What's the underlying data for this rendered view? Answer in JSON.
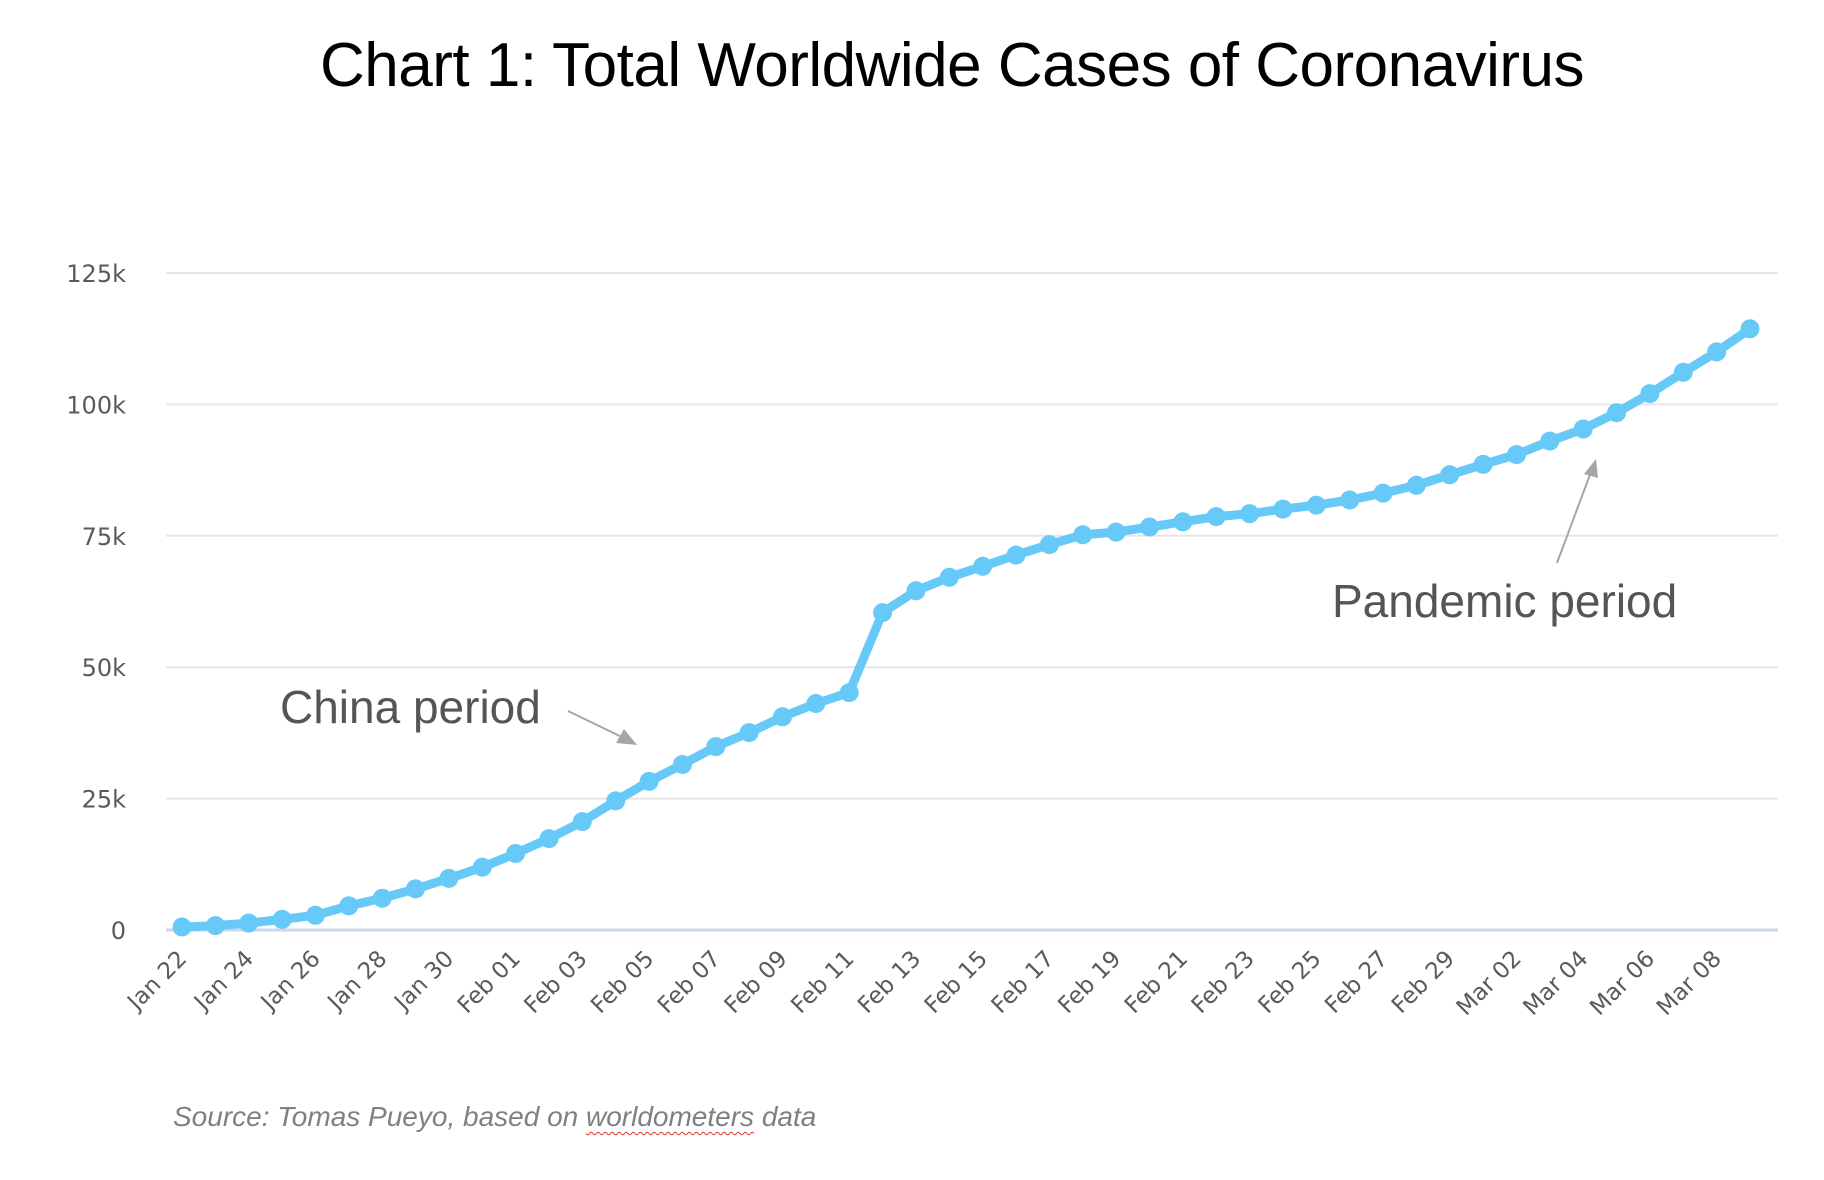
{
  "chart_data": {
    "type": "line",
    "title": "Chart 1: Total Worldwide Cases of Coronavirus",
    "xlabel": "",
    "ylabel": "",
    "ylim": [
      0,
      125000
    ],
    "yticks": [
      0,
      25000,
      50000,
      75000,
      100000,
      125000
    ],
    "ytick_labels": [
      "0",
      "25k",
      "50k",
      "75k",
      "100k",
      "125k"
    ],
    "grid": true,
    "legend": "none",
    "x": [
      "Jan 22",
      "Jan 23",
      "Jan 24",
      "Jan 25",
      "Jan 26",
      "Jan 27",
      "Jan 28",
      "Jan 29",
      "Jan 30",
      "Jan 31",
      "Feb 01",
      "Feb 02",
      "Feb 03",
      "Feb 04",
      "Feb 05",
      "Feb 06",
      "Feb 07",
      "Feb 08",
      "Feb 09",
      "Feb 10",
      "Feb 11",
      "Feb 12",
      "Feb 13",
      "Feb 14",
      "Feb 15",
      "Feb 16",
      "Feb 17",
      "Feb 18",
      "Feb 19",
      "Feb 20",
      "Feb 21",
      "Feb 22",
      "Feb 23",
      "Feb 24",
      "Feb 25",
      "Feb 26",
      "Feb 27",
      "Feb 28",
      "Feb 29",
      "Mar 01",
      "Mar 02",
      "Mar 03",
      "Mar 04",
      "Mar 05",
      "Mar 06",
      "Mar 07",
      "Mar 08",
      "Mar 09"
    ],
    "xtick_labels": [
      "Jan 22",
      "Jan 24",
      "Jan 26",
      "Jan 28",
      "Jan 30",
      "Feb 01",
      "Feb 03",
      "Feb 05",
      "Feb 07",
      "Feb 09",
      "Feb 11",
      "Feb 13",
      "Feb 15",
      "Feb 17",
      "Feb 19",
      "Feb 21",
      "Feb 23",
      "Feb 25",
      "Feb 27",
      "Feb 29",
      "Mar 02",
      "Mar 04",
      "Mar 06",
      "Mar 08"
    ],
    "series": [
      {
        "name": "Total Worldwide Cases",
        "color": "#66c9f8",
        "values": [
          580,
          845,
          1317,
          2015,
          2800,
          4581,
          6058,
          7813,
          9823,
          11950,
          14553,
          17391,
          20630,
          24554,
          28276,
          31481,
          34886,
          37558,
          40554,
          43103,
          45171,
          60381,
          64543,
          67100,
          69197,
          71329,
          73332,
          75184,
          75700,
          76677,
          77673,
          78651,
          79205,
          80087,
          80828,
          81820,
          83112,
          84615,
          86604,
          88585,
          90443,
          93016,
          95314,
          98425,
          102050,
          106099,
          109991,
          114381
        ]
      }
    ],
    "annotations": [
      {
        "text": "China period",
        "points_to": "Feb 05"
      },
      {
        "text": "Pandemic period",
        "points_to": "Mar 04"
      }
    ],
    "source": {
      "prefix": "Source: Tomas Pueyo, based on ",
      "highlighted": "worldometers",
      "suffix": " data"
    }
  },
  "colors": {
    "gridline": "#e6e6e6",
    "baseline": "#cdd6ea",
    "tick_text": "#5a5a5a",
    "arrow": "#a6a6a6"
  }
}
